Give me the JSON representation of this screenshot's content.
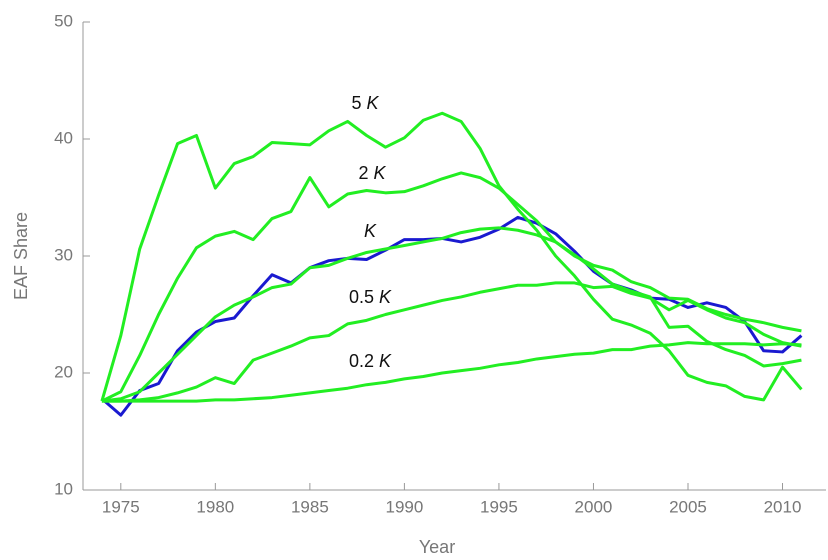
{
  "chart_data": {
    "type": "line",
    "x_label": "Year",
    "y_label": "EAF Share",
    "x": [
      1974,
      1975,
      1976,
      1977,
      1978,
      1979,
      1980,
      1981,
      1982,
      1983,
      1984,
      1985,
      1986,
      1987,
      1988,
      1989,
      1990,
      1991,
      1992,
      1993,
      1994,
      1995,
      1996,
      1997,
      1998,
      1999,
      2000,
      2001,
      2002,
      2003,
      2004,
      2005,
      2006,
      2007,
      2008,
      2009,
      2010,
      2011
    ],
    "series": [
      {
        "color": "#1a1ad0",
        "values": [
          17.8,
          16.4,
          18.5,
          19.1,
          21.9,
          23.5,
          24.4,
          24.7,
          26.6,
          28.4,
          27.7,
          29.0,
          29.6,
          29.8,
          29.7,
          30.5,
          31.4,
          31.4,
          31.5,
          31.2,
          31.6,
          32.3,
          33.3,
          32.8,
          31.9,
          30.4,
          28.7,
          27.6,
          27.1,
          26.4,
          26.3,
          25.6,
          26.0,
          25.6,
          24.4,
          21.9,
          21.8,
          23.2
        ]
      },
      {
        "color": "#22ee22",
        "label": {
          "prefix": "5",
          "symbol": "K"
        },
        "values": [
          17.6,
          23.2,
          30.6,
          35.2,
          39.6,
          40.3,
          35.8,
          37.9,
          38.5,
          39.7,
          39.6,
          39.5,
          40.7,
          41.5,
          40.3,
          39.3,
          40.1,
          41.6,
          42.2,
          41.5,
          39.2,
          36.0,
          34.0,
          32.2,
          30.0,
          28.3,
          26.3,
          24.6,
          24.1,
          23.4,
          21.9,
          19.8,
          19.2,
          18.9,
          18.0,
          17.7,
          20.5,
          18.6
        ]
      },
      {
        "color": "#22ee22",
        "label": {
          "prefix": "2",
          "symbol": "K"
        },
        "values": [
          17.6,
          18.4,
          21.5,
          25.0,
          28.1,
          30.7,
          31.7,
          32.1,
          31.4,
          33.2,
          33.8,
          36.7,
          34.2,
          35.3,
          35.6,
          35.4,
          35.5,
          36.0,
          36.6,
          37.1,
          36.7,
          35.8,
          34.4,
          33.0,
          31.2,
          30.1,
          28.9,
          27.6,
          27.0,
          26.5,
          23.9,
          24.0,
          22.7,
          22.0,
          21.5,
          20.6,
          20.8,
          21.1
        ]
      },
      {
        "color": "#22ee22",
        "label": {
          "symbol": "K"
        },
        "values": [
          17.6,
          17.8,
          18.4,
          20.0,
          21.6,
          23.2,
          24.8,
          25.8,
          26.5,
          27.3,
          27.6,
          29.0,
          29.2,
          29.8,
          30.3,
          30.6,
          30.9,
          31.2,
          31.5,
          32.0,
          32.3,
          32.4,
          32.2,
          31.8,
          31.2,
          30.0,
          29.2,
          28.8,
          27.8,
          27.3,
          26.4,
          26.3,
          25.5,
          25.0,
          24.6,
          24.3,
          23.9,
          23.6
        ]
      },
      {
        "color": "#22ee22",
        "label": {
          "prefix": "0.5",
          "symbol": "K"
        },
        "values": [
          17.6,
          17.6,
          17.7,
          17.9,
          18.3,
          18.8,
          19.6,
          19.1,
          21.1,
          21.7,
          22.3,
          23.0,
          23.2,
          24.2,
          24.5,
          25.0,
          25.4,
          25.8,
          26.2,
          26.5,
          26.9,
          27.2,
          27.5,
          27.5,
          27.7,
          27.7,
          27.3,
          27.4,
          26.8,
          26.4,
          25.4,
          26.2,
          25.4,
          24.7,
          24.3,
          23.3,
          22.6,
          22.3
        ]
      },
      {
        "color": "#22ee22",
        "label": {
          "prefix": "0.2",
          "symbol": "K"
        },
        "values": [
          17.6,
          17.6,
          17.6,
          17.6,
          17.6,
          17.6,
          17.7,
          17.7,
          17.8,
          17.9,
          18.1,
          18.3,
          18.5,
          18.7,
          19.0,
          19.2,
          19.5,
          19.7,
          20.0,
          20.2,
          20.4,
          20.7,
          20.9,
          21.2,
          21.4,
          21.6,
          21.7,
          22.0,
          22.0,
          22.3,
          22.4,
          22.6,
          22.5,
          22.5,
          22.5,
          22.4,
          22.5,
          22.4
        ]
      }
    ],
    "xlim": [
      1973,
      2012.3
    ],
    "xticks": [
      1975,
      1980,
      1985,
      1990,
      1995,
      2000,
      2005,
      2010
    ],
    "ylim": [
      10,
      50
    ],
    "yticks": [
      10,
      20,
      30,
      40,
      50
    ]
  }
}
